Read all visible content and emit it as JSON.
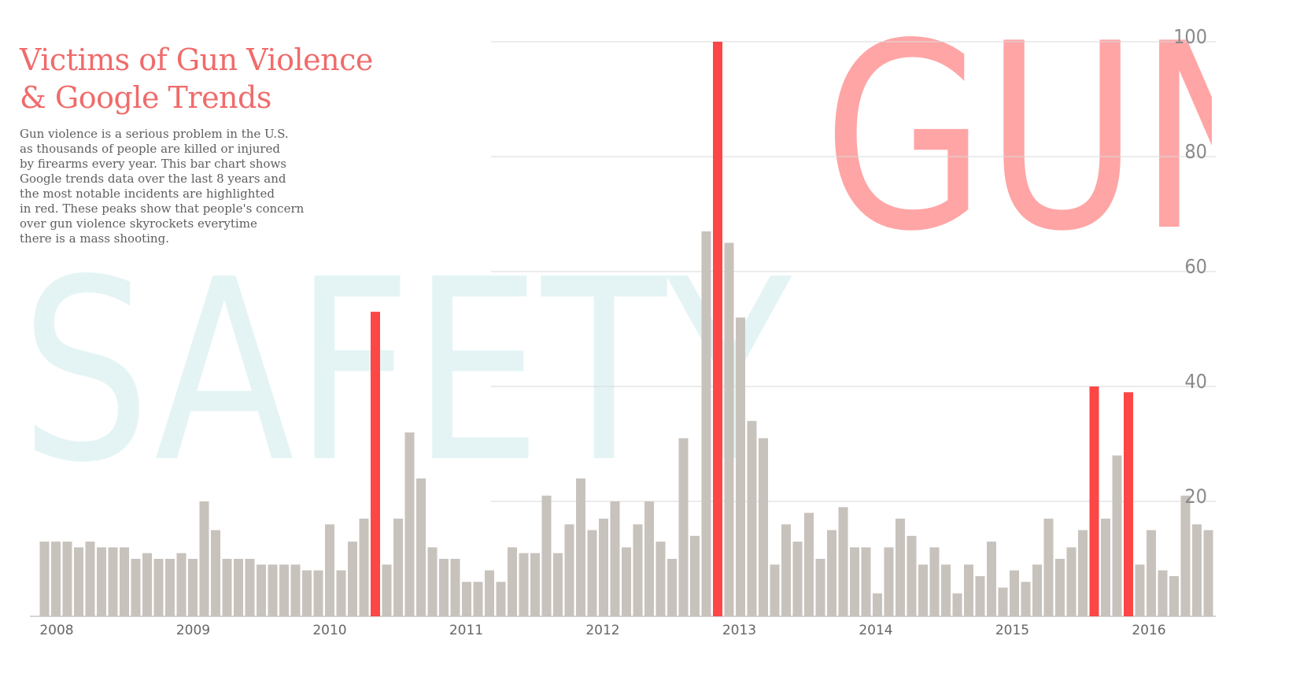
{
  "title_lines": [
    "Victims of Gun Violence",
    "& Google Trends"
  ],
  "description_lines": [
    "Gun violence is a serious problem in the U.S.",
    "as thousands of people are killed or injured",
    "by firearms every year. This bar chart shows",
    "Google trends data over the last 8 years and",
    "the most notable incidents are highlighted",
    "in red. These peaks show that people's concern",
    "over gun violence skyrockets everytime",
    "there is a mass shooting."
  ],
  "background_words": {
    "gun": "GUN",
    "safety": "SAFETY",
    "gun_color": "#ffa5a5",
    "safety_color": "#e4f4f5"
  },
  "colors": {
    "bar": "#c8c2bd",
    "highlight": "#fd4646",
    "grid": "#d9d9d9",
    "tick": "#8a8a8a",
    "axis": "#aaaaaa"
  },
  "chart_data": {
    "type": "bar",
    "title": "Victims of Gun Violence & Google Trends",
    "xlabel": "",
    "ylabel": "",
    "ylim": [
      0,
      100
    ],
    "yticks": [
      20,
      40,
      60,
      80,
      100
    ],
    "year_labels": [
      "2008",
      "2009",
      "2010",
      "2011",
      "2012",
      "2013",
      "2014",
      "2015",
      "2016"
    ],
    "grid": true,
    "values": [
      13,
      13,
      13,
      12,
      13,
      12,
      12,
      12,
      10,
      11,
      10,
      10,
      11,
      10,
      20,
      15,
      10,
      10,
      10,
      9,
      9,
      9,
      9,
      8,
      8,
      16,
      8,
      13,
      17,
      53,
      9,
      17,
      32,
      24,
      12,
      10,
      10,
      6,
      6,
      8,
      6,
      12,
      11,
      11,
      21,
      11,
      16,
      24,
      15,
      17,
      20,
      12,
      16,
      20,
      13,
      10,
      31,
      14,
      67,
      100,
      65,
      52,
      34,
      31,
      9,
      16,
      13,
      18,
      10,
      15,
      19,
      12,
      12,
      4,
      12,
      17,
      14,
      9,
      12,
      9,
      4,
      9,
      7,
      13,
      5,
      8,
      6,
      9,
      17,
      10,
      12,
      15,
      40,
      17,
      28,
      39,
      9,
      15,
      8,
      7,
      21,
      16,
      15
    ],
    "highlighted_indices": [
      29,
      59,
      92,
      95
    ]
  }
}
